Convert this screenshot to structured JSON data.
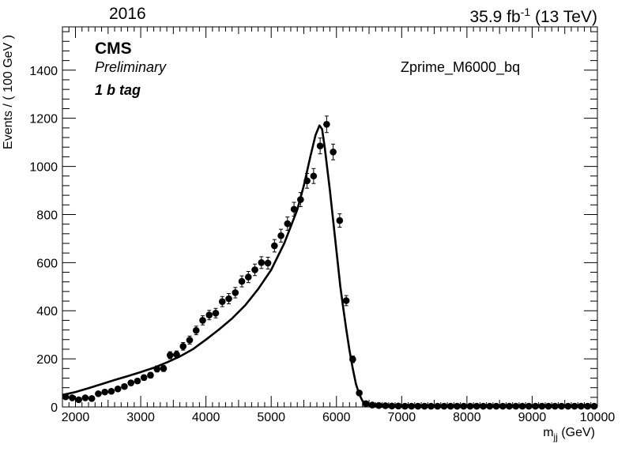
{
  "header": {
    "year": "2016",
    "lumi_value": "35.9 fb",
    "lumi_exp": "-1",
    "energy": "(13 TeV)"
  },
  "labels": {
    "experiment": "CMS",
    "status": "Preliminary",
    "category": "1 b tag",
    "sample": "Zprime_M6000_bq"
  },
  "chart_data": {
    "type": "scatter",
    "title": "",
    "xlabel_main": "m",
    "xlabel_sub": "jj",
    "xlabel_unit": " (GeV)",
    "ylabel": "Events / ( 100 GeV )",
    "xlim": [
      1800,
      10000
    ],
    "ylim": [
      0,
      1580
    ],
    "x_ticks": [
      2000,
      3000,
      4000,
      5000,
      6000,
      7000,
      8000,
      9000,
      10000
    ],
    "y_ticks": [
      0,
      200,
      400,
      600,
      800,
      1000,
      1200,
      1400
    ],
    "series": [
      {
        "kind": "points",
        "has_error_bars": true,
        "x": [
          1850,
          1950,
          2050,
          2150,
          2250,
          2350,
          2450,
          2550,
          2650,
          2750,
          2850,
          2950,
          3050,
          3150,
          3250,
          3350,
          3450,
          3550,
          3650,
          3750,
          3850,
          3950,
          4050,
          4150,
          4250,
          4350,
          4450,
          4550,
          4650,
          4750,
          4850,
          4950,
          5050,
          5150,
          5250,
          5350,
          5450,
          5550,
          5650,
          5750,
          5850,
          5950,
          6050,
          6150,
          6250,
          6350,
          6450,
          6550,
          6650,
          6750,
          6850,
          6950,
          7050,
          7150,
          7250,
          7350,
          7450,
          7550,
          7650,
          7750,
          7850,
          7950,
          8050,
          8150,
          8250,
          8350,
          8450,
          8550,
          8650,
          8750,
          8850,
          8950,
          9050,
          9150,
          9250,
          9350,
          9450,
          9550,
          9650,
          9750,
          9850,
          9950
        ],
        "y": [
          42,
          38,
          30,
          38,
          35,
          55,
          62,
          65,
          75,
          85,
          100,
          108,
          122,
          132,
          158,
          160,
          215,
          218,
          252,
          278,
          318,
          360,
          382,
          390,
          438,
          450,
          475,
          522,
          540,
          570,
          600,
          598,
          670,
          712,
          762,
          822,
          862,
          940,
          960,
          1085,
          1175,
          1060,
          775,
          442,
          198,
          58,
          14,
          8,
          6,
          5,
          4,
          4,
          3,
          3,
          3,
          3,
          3,
          3,
          3,
          3,
          3,
          3,
          3,
          3,
          3,
          3,
          3,
          3,
          3,
          3,
          3,
          3,
          3,
          3,
          3,
          3,
          3,
          3,
          3,
          3,
          3,
          3
        ]
      },
      {
        "kind": "curve",
        "x": [
          1800,
          2000,
          2200,
          2400,
          2600,
          2800,
          3000,
          3200,
          3400,
          3600,
          3800,
          4000,
          4200,
          4400,
          4600,
          4800,
          5000,
          5200,
          5400,
          5500,
          5600,
          5680,
          5740,
          5780,
          5820,
          5860,
          5900,
          5940,
          5980,
          6020,
          6060,
          6100,
          6150,
          6200,
          6250,
          6300,
          6350,
          6400,
          6450,
          6500,
          6550,
          6600,
          6700,
          6800,
          7000,
          10000
        ],
        "y": [
          50,
          62,
          78,
          95,
          112,
          128,
          145,
          163,
          185,
          210,
          240,
          280,
          322,
          368,
          422,
          490,
          570,
          680,
          820,
          920,
          1040,
          1130,
          1170,
          1155,
          1080,
          990,
          900,
          800,
          700,
          600,
          500,
          420,
          325,
          235,
          160,
          95,
          52,
          25,
          12,
          6,
          3,
          2,
          1,
          0,
          0,
          0
        ]
      }
    ]
  }
}
